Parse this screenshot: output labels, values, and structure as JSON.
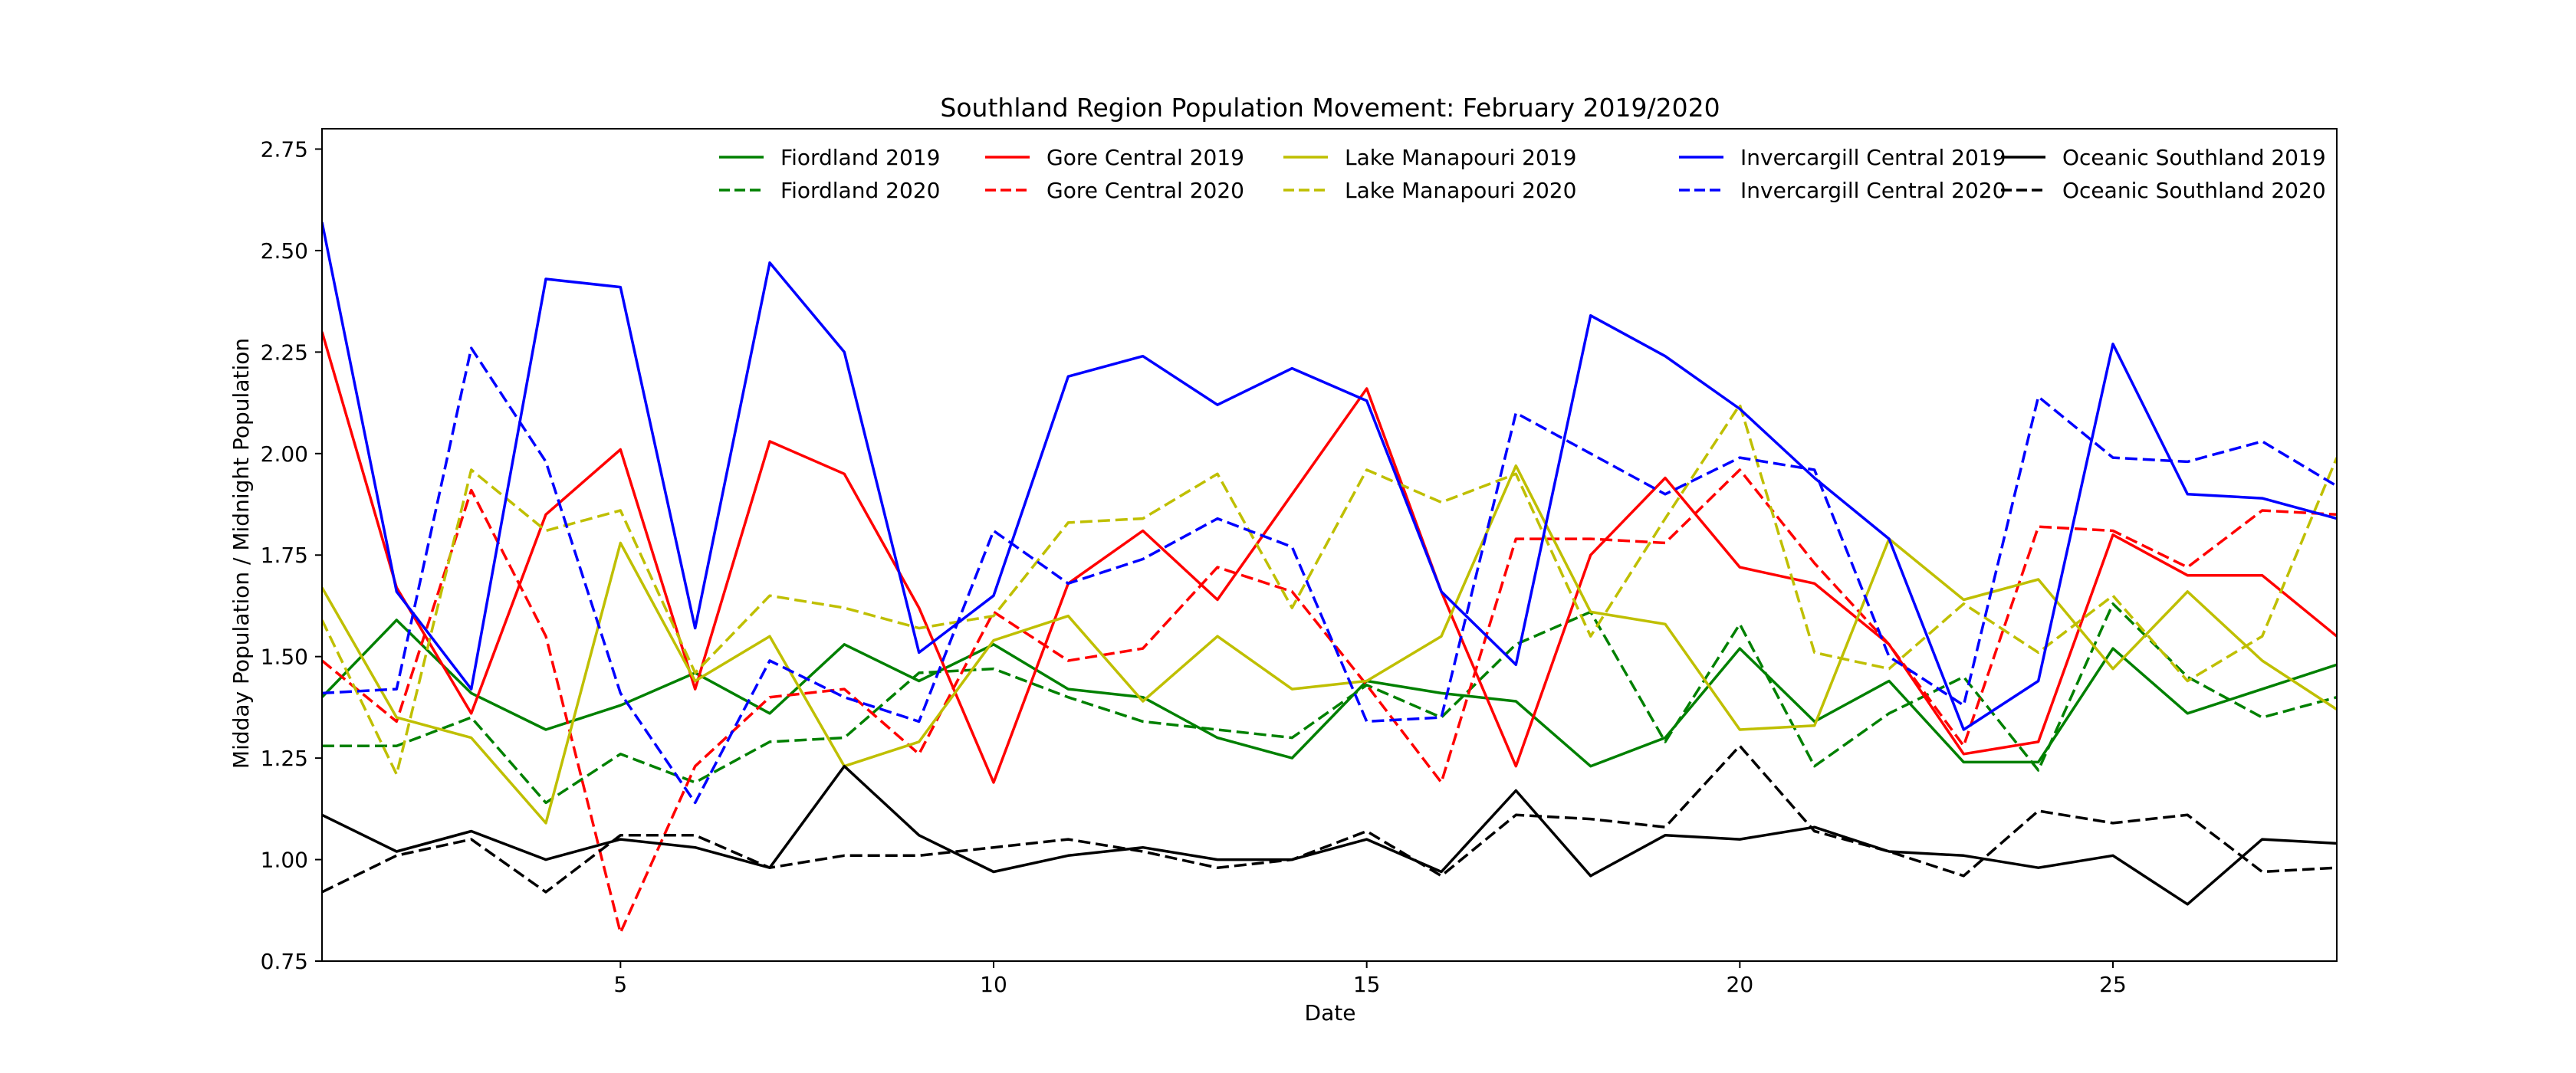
{
  "chart_data": {
    "type": "line",
    "title": "Southland Region Population Movement: February 2019/2020",
    "xlabel": "Date",
    "ylabel": "Midday Population / Midnight Population",
    "xlim": [
      1,
      28
    ],
    "ylim": [
      0.75,
      2.8
    ],
    "xticks": [
      5,
      10,
      15,
      20,
      25
    ],
    "yticks": [
      0.75,
      1.0,
      1.25,
      1.5,
      1.75,
      2.0,
      2.25,
      2.5,
      2.75
    ],
    "grid": false,
    "legend_position": "top-right",
    "x": [
      1,
      2,
      3,
      4,
      5,
      6,
      7,
      8,
      9,
      10,
      11,
      12,
      13,
      14,
      15,
      16,
      17,
      18,
      19,
      20,
      21,
      22,
      23,
      24,
      25,
      26,
      27,
      28
    ],
    "series": [
      {
        "name": "Fiordland 2019",
        "color": "#008000",
        "dash": "solid",
        "values": [
          1.4,
          1.59,
          1.41,
          1.32,
          1.38,
          1.46,
          1.36,
          1.53,
          1.44,
          1.53,
          1.42,
          1.4,
          1.3,
          1.25,
          1.44,
          1.41,
          1.39,
          1.23,
          1.3,
          1.52,
          1.34,
          1.44,
          1.24,
          1.24,
          1.52,
          1.36,
          1.42,
          1.48
        ]
      },
      {
        "name": "Fiordland 2020",
        "color": "#008000",
        "dash": "dashed",
        "values": [
          1.28,
          1.28,
          1.35,
          1.14,
          1.26,
          1.19,
          1.29,
          1.3,
          1.46,
          1.47,
          1.4,
          1.34,
          1.32,
          1.3,
          1.43,
          1.35,
          1.53,
          1.61,
          1.29,
          1.58,
          1.23,
          1.36,
          1.45,
          1.22,
          1.63,
          1.45,
          1.35,
          1.4
        ]
      },
      {
        "name": "Gore Central 2019",
        "color": "#ff0000",
        "dash": "solid",
        "values": [
          2.3,
          1.67,
          1.36,
          1.85,
          2.01,
          1.42,
          2.03,
          1.95,
          1.62,
          1.19,
          1.68,
          1.81,
          1.64,
          1.9,
          2.16,
          1.66,
          1.23,
          1.75,
          1.94,
          1.72,
          1.68,
          1.53,
          1.26,
          1.29,
          1.8,
          1.7,
          1.7,
          1.55
        ]
      },
      {
        "name": "Gore Central 2020",
        "color": "#ff0000",
        "dash": "dashed",
        "values": [
          1.49,
          1.34,
          1.91,
          1.55,
          0.82,
          1.23,
          1.4,
          1.42,
          1.26,
          1.61,
          1.49,
          1.52,
          1.72,
          1.66,
          1.43,
          1.19,
          1.79,
          1.79,
          1.78,
          1.96,
          1.73,
          1.53,
          1.28,
          1.82,
          1.81,
          1.72,
          1.86,
          1.85
        ]
      },
      {
        "name": "Lake Manapouri 2019",
        "color": "#bfbf00",
        "dash": "solid",
        "values": [
          1.67,
          1.35,
          1.3,
          1.09,
          1.78,
          1.44,
          1.55,
          1.23,
          1.29,
          1.54,
          1.6,
          1.39,
          1.55,
          1.42,
          1.44,
          1.55,
          1.97,
          1.61,
          1.58,
          1.32,
          1.33,
          1.79,
          1.64,
          1.69,
          1.47,
          1.66,
          1.49,
          1.37
        ]
      },
      {
        "name": "Lake Manapouri 2020",
        "color": "#bfbf00",
        "dash": "dashed",
        "values": [
          1.59,
          1.21,
          1.96,
          1.81,
          1.86,
          1.46,
          1.65,
          1.62,
          1.57,
          1.6,
          1.83,
          1.84,
          1.95,
          1.62,
          1.96,
          1.88,
          1.95,
          1.55,
          1.84,
          2.12,
          1.51,
          1.47,
          1.63,
          1.51,
          1.65,
          1.44,
          1.55,
          1.99
        ]
      },
      {
        "name": "Invercargill Central 2019",
        "color": "#0000ff",
        "dash": "solid",
        "values": [
          2.57,
          1.66,
          1.42,
          2.43,
          2.41,
          1.57,
          2.47,
          2.25,
          1.51,
          1.65,
          2.19,
          2.24,
          2.12,
          2.21,
          2.13,
          1.66,
          1.48,
          2.34,
          2.24,
          2.11,
          1.94,
          1.79,
          1.32,
          1.44,
          2.27,
          1.9,
          1.89,
          1.84
        ]
      },
      {
        "name": "Invercargill Central 2020",
        "color": "#0000ff",
        "dash": "dashed",
        "values": [
          1.41,
          1.42,
          2.26,
          1.98,
          1.41,
          1.14,
          1.49,
          1.4,
          1.34,
          1.81,
          1.68,
          1.74,
          1.84,
          1.77,
          1.34,
          1.35,
          2.1,
          2.0,
          1.9,
          1.99,
          1.96,
          1.5,
          1.38,
          2.14,
          1.99,
          1.98,
          2.03,
          1.92
        ]
      },
      {
        "name": "Oceanic Southland 2019",
        "color": "#000000",
        "dash": "solid",
        "values": [
          1.11,
          1.02,
          1.07,
          1.0,
          1.05,
          1.03,
          0.98,
          1.23,
          1.06,
          0.97,
          1.01,
          1.03,
          1.0,
          1.0,
          1.05,
          0.97,
          1.17,
          0.96,
          1.06,
          1.05,
          1.08,
          1.02,
          1.01,
          0.98,
          1.01,
          0.89,
          1.05,
          1.04
        ]
      },
      {
        "name": "Oceanic Southland 2020",
        "color": "#000000",
        "dash": "dashed",
        "values": [
          0.92,
          1.01,
          1.05,
          0.92,
          1.06,
          1.06,
          0.98,
          1.01,
          1.01,
          1.03,
          1.05,
          1.02,
          0.98,
          1.0,
          1.07,
          0.96,
          1.11,
          1.1,
          1.08,
          1.28,
          1.07,
          1.02,
          0.96,
          1.12,
          1.09,
          1.11,
          0.97,
          0.98
        ]
      }
    ]
  }
}
